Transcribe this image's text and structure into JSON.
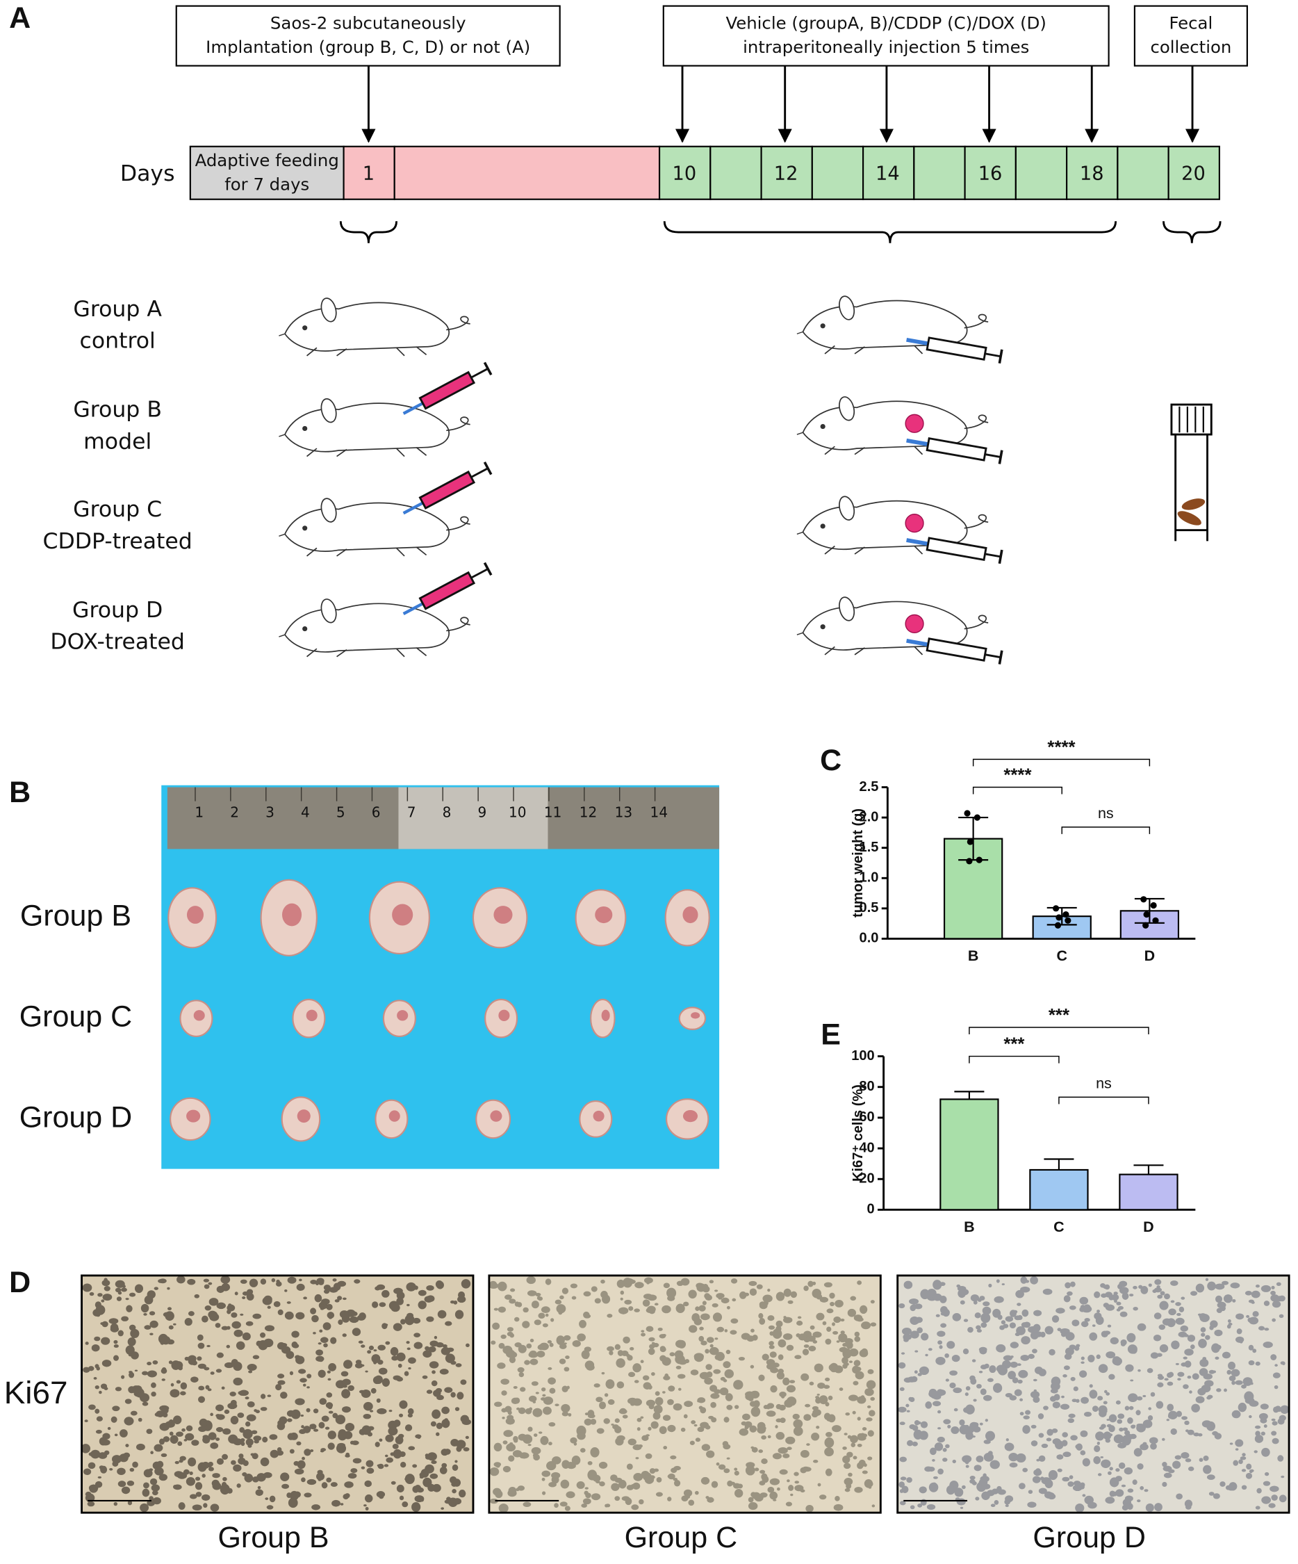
{
  "panel_a": {
    "label": "A",
    "boxes": [
      [
        "Saos-2 subcutaneously",
        "Implantation (group B, C, D) or not (A)"
      ],
      [
        "Vehicle (groupA, B)/CDDP (C)/DOX (D)",
        "intraperitoneally injection 5 times"
      ],
      [
        "Fecal",
        "collection"
      ]
    ],
    "days_label": "Days",
    "adaptive_feeding": [
      "Adaptive feeding",
      "for 7 days"
    ],
    "day_numbers": [
      1,
      10,
      12,
      14,
      16,
      18,
      20
    ],
    "groups": [
      [
        "Group A",
        "control"
      ],
      [
        "Group B",
        "model"
      ],
      [
        "Group C",
        "CDDP-treated"
      ],
      [
        "Group D",
        "DOX-treated"
      ]
    ]
  },
  "panel_b": {
    "label": "B",
    "rows": [
      "Group B",
      "Group C",
      "Group D"
    ],
    "ruler_numbers": [
      1,
      2,
      3,
      4,
      5,
      6,
      7,
      8,
      9,
      10,
      11,
      12,
      13,
      14
    ]
  },
  "chart_data": [
    {
      "type": "bar",
      "panel_label": "C",
      "y_label": "tumor weight (g)",
      "categories": [
        "B",
        "C",
        "D"
      ],
      "values": [
        1.65,
        0.37,
        0.46
      ],
      "errors": [
        0.35,
        0.14,
        0.2
      ],
      "error_direction": "both",
      "points": [
        [
          2.07,
          2.0,
          1.6,
          1.3,
          1.28
        ],
        [
          0.5,
          0.4,
          0.35,
          0.3,
          0.22
        ],
        [
          0.65,
          0.55,
          0.4,
          0.3,
          0.22
        ]
      ],
      "colors": [
        "#a9dfa9",
        "#9fc8f2",
        "#bcbcf2"
      ],
      "ylim": [
        0,
        2.5
      ],
      "yticks": [
        {
          "value": 0,
          "label": "0.0"
        },
        0.5,
        {
          "value": 1,
          "label": "1.0"
        },
        1.5,
        {
          "value": 2,
          "label": "2.0"
        },
        2.5
      ],
      "significance": [
        "****",
        "****",
        "ns"
      ]
    },
    {
      "type": "bar",
      "panel_label": "E",
      "y_label": "Ki67⁺ cells (%)",
      "categories": [
        "B",
        "C",
        "D"
      ],
      "values": [
        72,
        26,
        23
      ],
      "errors": [
        5,
        7,
        6
      ],
      "error_direction": "up",
      "colors": [
        "#a9dfa9",
        "#9fc8f2",
        "#bcbcf2"
      ],
      "ylim": [
        0,
        100
      ],
      "yticks": [
        0,
        20,
        40,
        60,
        80,
        100
      ],
      "significance": [
        "***",
        "***",
        "ns"
      ]
    }
  ],
  "panel_d": {
    "label": "D",
    "stain": "Ki67",
    "captions": [
      "Group B",
      "Group C",
      "Group D"
    ]
  }
}
